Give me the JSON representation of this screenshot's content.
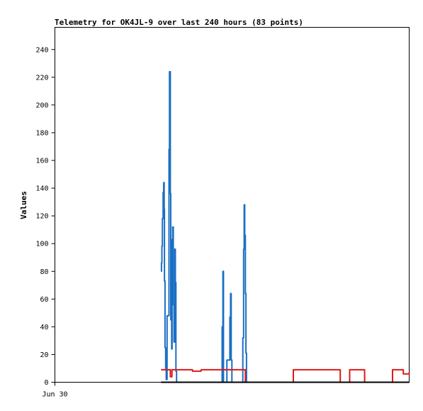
{
  "chart_data": {
    "type": "line",
    "title": "Telemetry for OK4JL-9 over last 240 hours (83 points)",
    "xlabel": "",
    "ylabel": "Values",
    "x_tick_labels": [
      "Jun 30"
    ],
    "xlim": [
      0,
      240
    ],
    "ylim": [
      0,
      256
    ],
    "y_ticks": [
      0,
      20,
      40,
      60,
      80,
      100,
      120,
      140,
      160,
      180,
      200,
      220,
      240
    ],
    "grid": false,
    "legend": "none",
    "series": [
      {
        "color": "#1a6fc4",
        "style": "step",
        "x": [
          71.9,
          72.2,
          72.5,
          72.8,
          73.3,
          73.7,
          74.0,
          74.2,
          74.6,
          75.0,
          75.4,
          76.0,
          77.3,
          77.6,
          78.2,
          78.5,
          78.8,
          79.1,
          79.4,
          79.8,
          80.2,
          80.7,
          81.2,
          81.6,
          82.0,
          82.4,
          82.8,
          83.3,
          83.7,
          84.2,
          113.3,
          113.8,
          114.2,
          116.5,
          118.5,
          119.0,
          119.4,
          119.9,
          127.3,
          127.8,
          128.2,
          128.6,
          129.0,
          129.4,
          129.8,
          130.2,
          130.9
        ],
        "y": [
          80,
          86,
          98,
          118,
          137,
          144,
          125,
          73,
          25,
          10,
          2,
          48,
          168,
          224,
          136,
          45,
          72,
          24,
          103,
          112,
          56,
          29,
          96,
          72,
          8,
          0,
          0,
          0,
          0,
          0,
          40,
          80,
          0,
          16,
          47,
          64,
          16,
          0,
          32,
          96,
          128,
          106,
          64,
          21,
          0,
          0,
          0
        ]
      },
      {
        "color": "#e01818",
        "style": "step",
        "x": [
          71.9,
          77.0,
          78.2,
          79.3,
          80.3,
          82.0,
          85.0,
          88.5,
          93.2,
          99.0,
          110.5,
          119.0,
          125.6,
          129.0,
          137.0,
          161.5,
          193.3,
          199.7,
          209.8,
          218.0,
          228.7,
          236.0,
          240.0
        ],
        "y": [
          9,
          9,
          4,
          9,
          9,
          9,
          9,
          9,
          8,
          9,
          9,
          9,
          9,
          0,
          0,
          9,
          0,
          9,
          0,
          0,
          9,
          6,
          7
        ]
      },
      {
        "color": "#000000",
        "style": "line",
        "x": [
          71.9,
          240
        ],
        "y": [
          0,
          0
        ]
      }
    ]
  }
}
